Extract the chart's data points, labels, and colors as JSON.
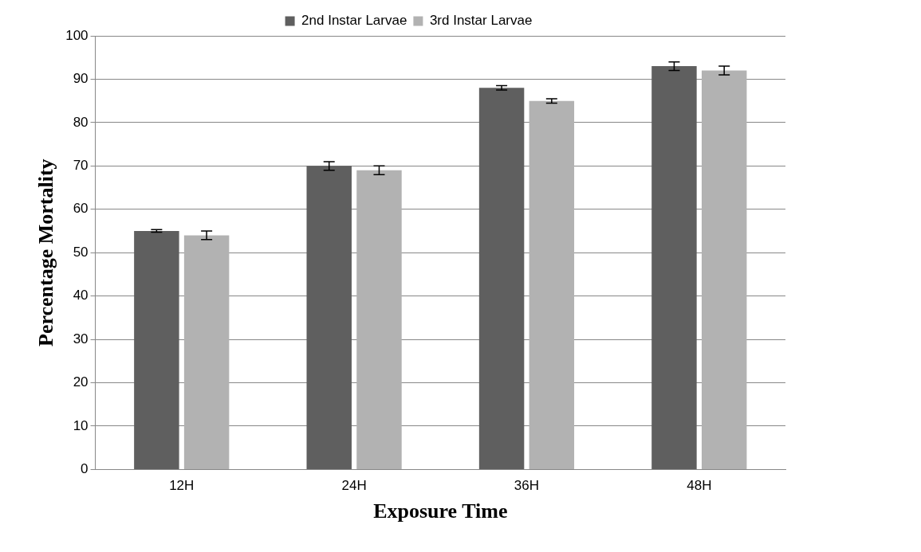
{
  "chart_data": {
    "type": "bar",
    "xlabel": "Exposure Time",
    "ylabel": "Percentage Mortality",
    "categories": [
      "12H",
      "24H",
      "36H",
      "48H"
    ],
    "series": [
      {
        "name": "2nd Instar Larvae",
        "color": "#5f5f5f",
        "values": [
          55,
          70,
          88,
          93
        ],
        "errors": [
          0.3,
          1,
          0.5,
          1
        ]
      },
      {
        "name": "3rd Instar Larvae",
        "color": "#b2b2b2",
        "values": [
          54,
          69,
          85,
          92
        ],
        "errors": [
          1,
          1,
          0.5,
          1
        ]
      }
    ],
    "ylim": [
      0,
      100
    ],
    "yticks": [
      0,
      10,
      20,
      30,
      40,
      50,
      60,
      70,
      80,
      90,
      100
    ],
    "grid": "y",
    "legend": "top"
  }
}
